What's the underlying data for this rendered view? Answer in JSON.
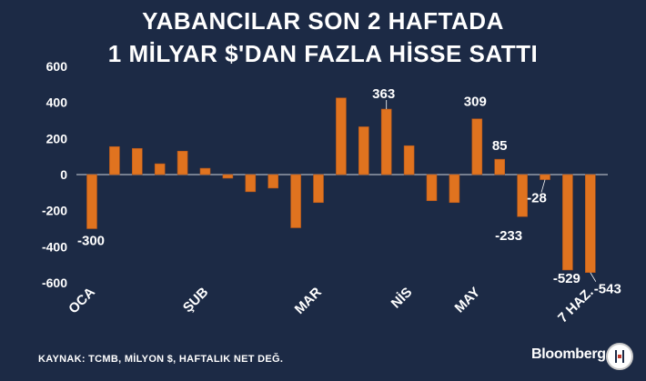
{
  "title_line1": "YABANCILAR SON 2 HAFTADA",
  "title_line2": "1 MİLYAR $'DAN FAZLA HİSSE SATTI",
  "footer": "KAYNAK: TCMB, MİLYON $, HAFTALIK NET DEĞ.",
  "brand": "Bloomberg",
  "colors": {
    "background": "#1c2a45",
    "bar": "#e0731f",
    "text": "#ffffff"
  },
  "chart_data": {
    "type": "bar",
    "title": "YABANCILAR SON 2 HAFTADA 1 MİLYAR $'DAN FAZLA HİSSE SATTI",
    "ylim": [
      -600,
      600
    ],
    "yticks": [
      600,
      400,
      200,
      0,
      -200,
      -400,
      -600
    ],
    "grid": false,
    "month_labels": [
      {
        "label": "OCA",
        "index": 0
      },
      {
        "label": "ŞUB",
        "index": 5
      },
      {
        "label": "MAR",
        "index": 10
      },
      {
        "label": "NİS",
        "index": 14
      },
      {
        "label": "MAY",
        "index": 17
      },
      {
        "label": "7 HAZ.",
        "index": 22
      }
    ],
    "values": [
      -300,
      155,
      145,
      60,
      130,
      35,
      -20,
      -95,
      -75,
      -295,
      -155,
      425,
      265,
      363,
      160,
      -145,
      -155,
      309,
      85,
      -233,
      -28,
      -529,
      -543
    ],
    "data_labels": [
      {
        "index": 0,
        "text": "-300"
      },
      {
        "index": 13,
        "text": "363"
      },
      {
        "index": 17,
        "text": "309"
      },
      {
        "index": 18,
        "text": "85"
      },
      {
        "index": 19,
        "text": "-233"
      },
      {
        "index": 20,
        "text": "-28"
      },
      {
        "index": 21,
        "text": "-529"
      },
      {
        "index": 22,
        "text": "-543"
      }
    ]
  }
}
